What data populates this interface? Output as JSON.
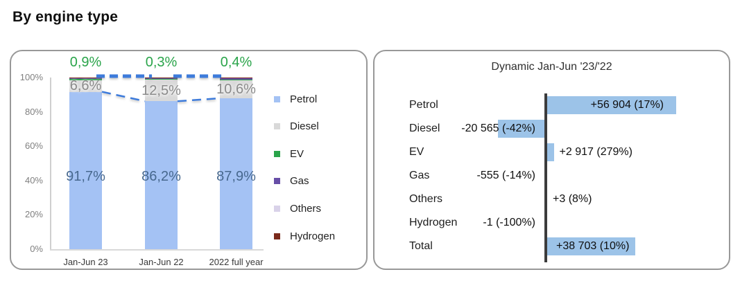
{
  "title": "By engine type",
  "accent_colors": {
    "petrol_blue": "#A4C2F4",
    "diesel_gray": "#D9D9D9",
    "ev_green": "#2AA44A",
    "gas_purple": "#674EA7",
    "others_lavender": "#D9D2E9",
    "hydrogen_maroon": "#7B2A1C",
    "dash_blue": "#3D7BDB",
    "dynamic_bar_blue": "#9CC3E8",
    "dynamic_axis": "#3C3C3C"
  },
  "chart_data": [
    {
      "type": "bar",
      "stacked": true,
      "unit": "percent",
      "categories": [
        "Jan-Jun 23",
        "Jan-Jun 22",
        "2022 full year"
      ],
      "y_ticks": [
        "100%",
        "80%",
        "60%",
        "40%",
        "20%",
        "0%"
      ],
      "ylim": [
        0,
        100
      ],
      "grid": false,
      "legend_position": "right",
      "series": [
        {
          "name": "Petrol",
          "color": "#A4C2F4",
          "values": [
            91.7,
            86.2,
            87.9
          ],
          "labels": [
            "91,7%",
            "86,2%",
            "87,9%"
          ]
        },
        {
          "name": "Diesel",
          "color": "#D9D9D9",
          "values": [
            6.6,
            12.5,
            10.6
          ],
          "labels": [
            "6,6%",
            "12,5%",
            "10,6%"
          ]
        },
        {
          "name": "EV",
          "color": "#2AA44A",
          "values": [
            0.9,
            0.3,
            0.4
          ],
          "labels": [
            "0,9%",
            "0,3%",
            "0,4%"
          ]
        },
        {
          "name": "Gas",
          "color": "#674EA7",
          "values": [
            0.5,
            0.7,
            0.7
          ],
          "labels": []
        },
        {
          "name": "Others",
          "color": "#D9D2E9",
          "values": [
            0.2,
            0.2,
            0.2
          ],
          "labels": []
        },
        {
          "name": "Hydrogen",
          "color": "#7B2A1C",
          "values": [
            0.1,
            0.1,
            0.2
          ],
          "labels": []
        }
      ]
    },
    {
      "type": "bar",
      "orientation": "horizontal",
      "title": "Dynamic Jan-Jun '23/'22",
      "categories": [
        "Petrol",
        "Diesel",
        "EV",
        "Gas",
        "Others",
        "Hydrogen",
        "Total"
      ],
      "values": [
        56904,
        -20565,
        2917,
        -555,
        3,
        -1,
        38703
      ],
      "labels": [
        "+56 904 (17%)",
        "-20 565 (-42%)",
        "+2 917 (279%)",
        "-555 (-14%)",
        "+3 (8%)",
        "-1 (-100%)",
        "+38 703 (10%)"
      ],
      "bar_color": "#9CC3E8",
      "xlim": [
        -25000,
        60000
      ]
    }
  ]
}
